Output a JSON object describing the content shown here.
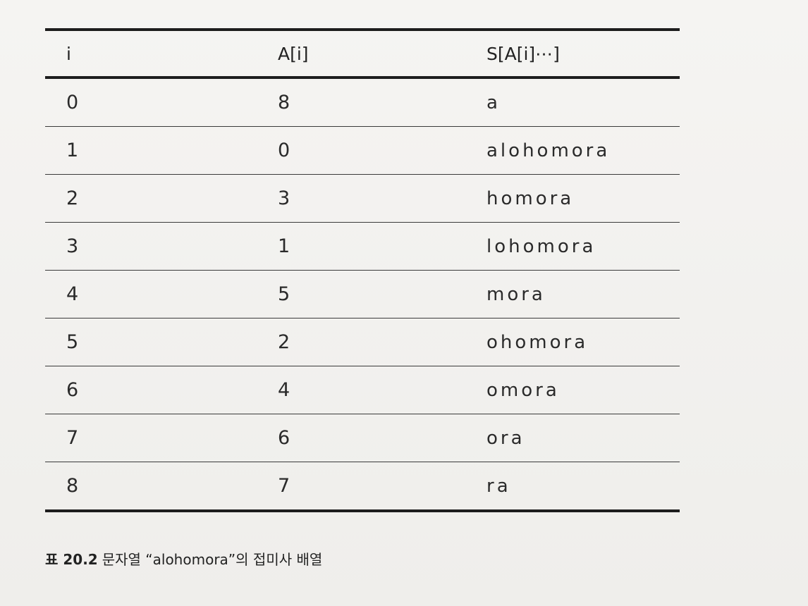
{
  "table": {
    "headers": [
      "i",
      "A[i]",
      "S[A[i]⋯]"
    ],
    "rows": [
      {
        "i": "0",
        "a": "8",
        "s": "a"
      },
      {
        "i": "1",
        "a": "0",
        "s": "alohomora"
      },
      {
        "i": "2",
        "a": "3",
        "s": "homora"
      },
      {
        "i": "3",
        "a": "1",
        "s": "lohomora"
      },
      {
        "i": "4",
        "a": "5",
        "s": "mora"
      },
      {
        "i": "5",
        "a": "2",
        "s": "ohomora"
      },
      {
        "i": "6",
        "a": "4",
        "s": "omora"
      },
      {
        "i": "7",
        "a": "6",
        "s": "ora"
      },
      {
        "i": "8",
        "a": "7",
        "s": "ra"
      }
    ]
  },
  "caption": {
    "label": "표 20.2",
    "text": "문자열 “alohomora”의 접미사 배열"
  }
}
